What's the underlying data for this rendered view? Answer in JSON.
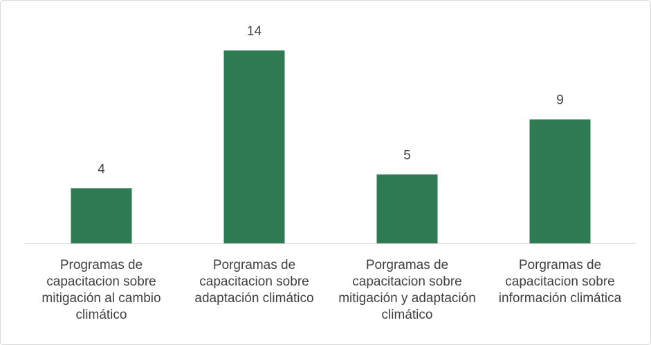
{
  "chart_data": {
    "type": "bar",
    "categories": [
      "Programas de capacitacion sobre mitigación al cambio climático",
      "Porgramas de capacitacion sobre adaptación climático",
      "Porgramas de capacitacion sobre mitigación y adaptación climático",
      "Porgramas de capacitacion sobre información climática"
    ],
    "values": [
      4,
      14,
      5,
      9
    ],
    "color": "#2e7a52",
    "grid": false
  }
}
